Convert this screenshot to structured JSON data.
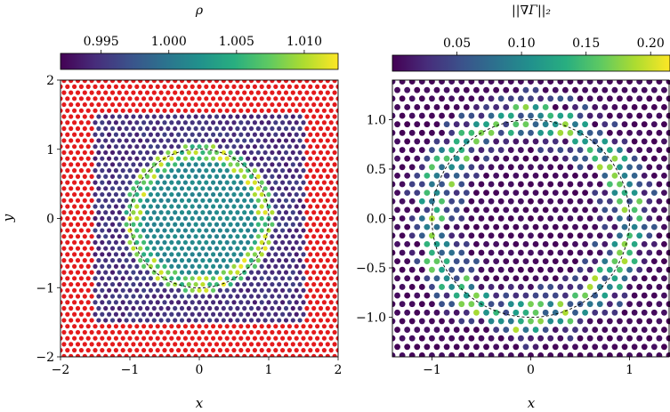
{
  "chart_data": [
    {
      "type": "scatter",
      "title": "",
      "xlabel": "x",
      "ylabel": "y",
      "xlim": [
        -2,
        2
      ],
      "ylim": [
        -2,
        2
      ],
      "x_ticks": [
        "−2",
        "−1",
        "0",
        "1",
        "2"
      ],
      "y_ticks": [
        "−2",
        "−1",
        "0",
        "1",
        "2"
      ],
      "colorbar": {
        "label": "ρ",
        "range": [
          0.992,
          1.0125
        ],
        "ticks": [
          "0.995",
          "1.000",
          "1.005",
          "1.010"
        ],
        "tick_values": [
          0.995,
          1.0,
          1.005,
          1.01
        ],
        "colormap": "viridis"
      },
      "boundary_particle_color": "#e41a1c",
      "fluid_region": {
        "x": [
          -1.5,
          1.5
        ],
        "y": [
          -1.5,
          1.5
        ]
      },
      "interface_circle": {
        "center": [
          0,
          0
        ],
        "radius": 1
      },
      "grid": false
    },
    {
      "type": "scatter",
      "title": "",
      "xlabel": "x",
      "ylabel": "",
      "xlim": [
        -1.4,
        1.4
      ],
      "ylim": [
        -1.4,
        1.4
      ],
      "x_ticks": [
        "−1",
        "0",
        "1"
      ],
      "y_ticks": [
        "1.0",
        "0.5",
        "0.0",
        "−0.5",
        "−1.0"
      ],
      "colorbar": {
        "label": "||∇Γ||₂",
        "range": [
          0.0,
          0.215
        ],
        "ticks": [
          "0.05",
          "0.10",
          "0.15",
          "0.20"
        ],
        "tick_values": [
          0.05,
          0.1,
          0.15,
          0.2
        ],
        "colormap": "viridis"
      },
      "interface_circle": {
        "center": [
          0,
          0
        ],
        "radius": 1
      },
      "grid": false
    }
  ]
}
